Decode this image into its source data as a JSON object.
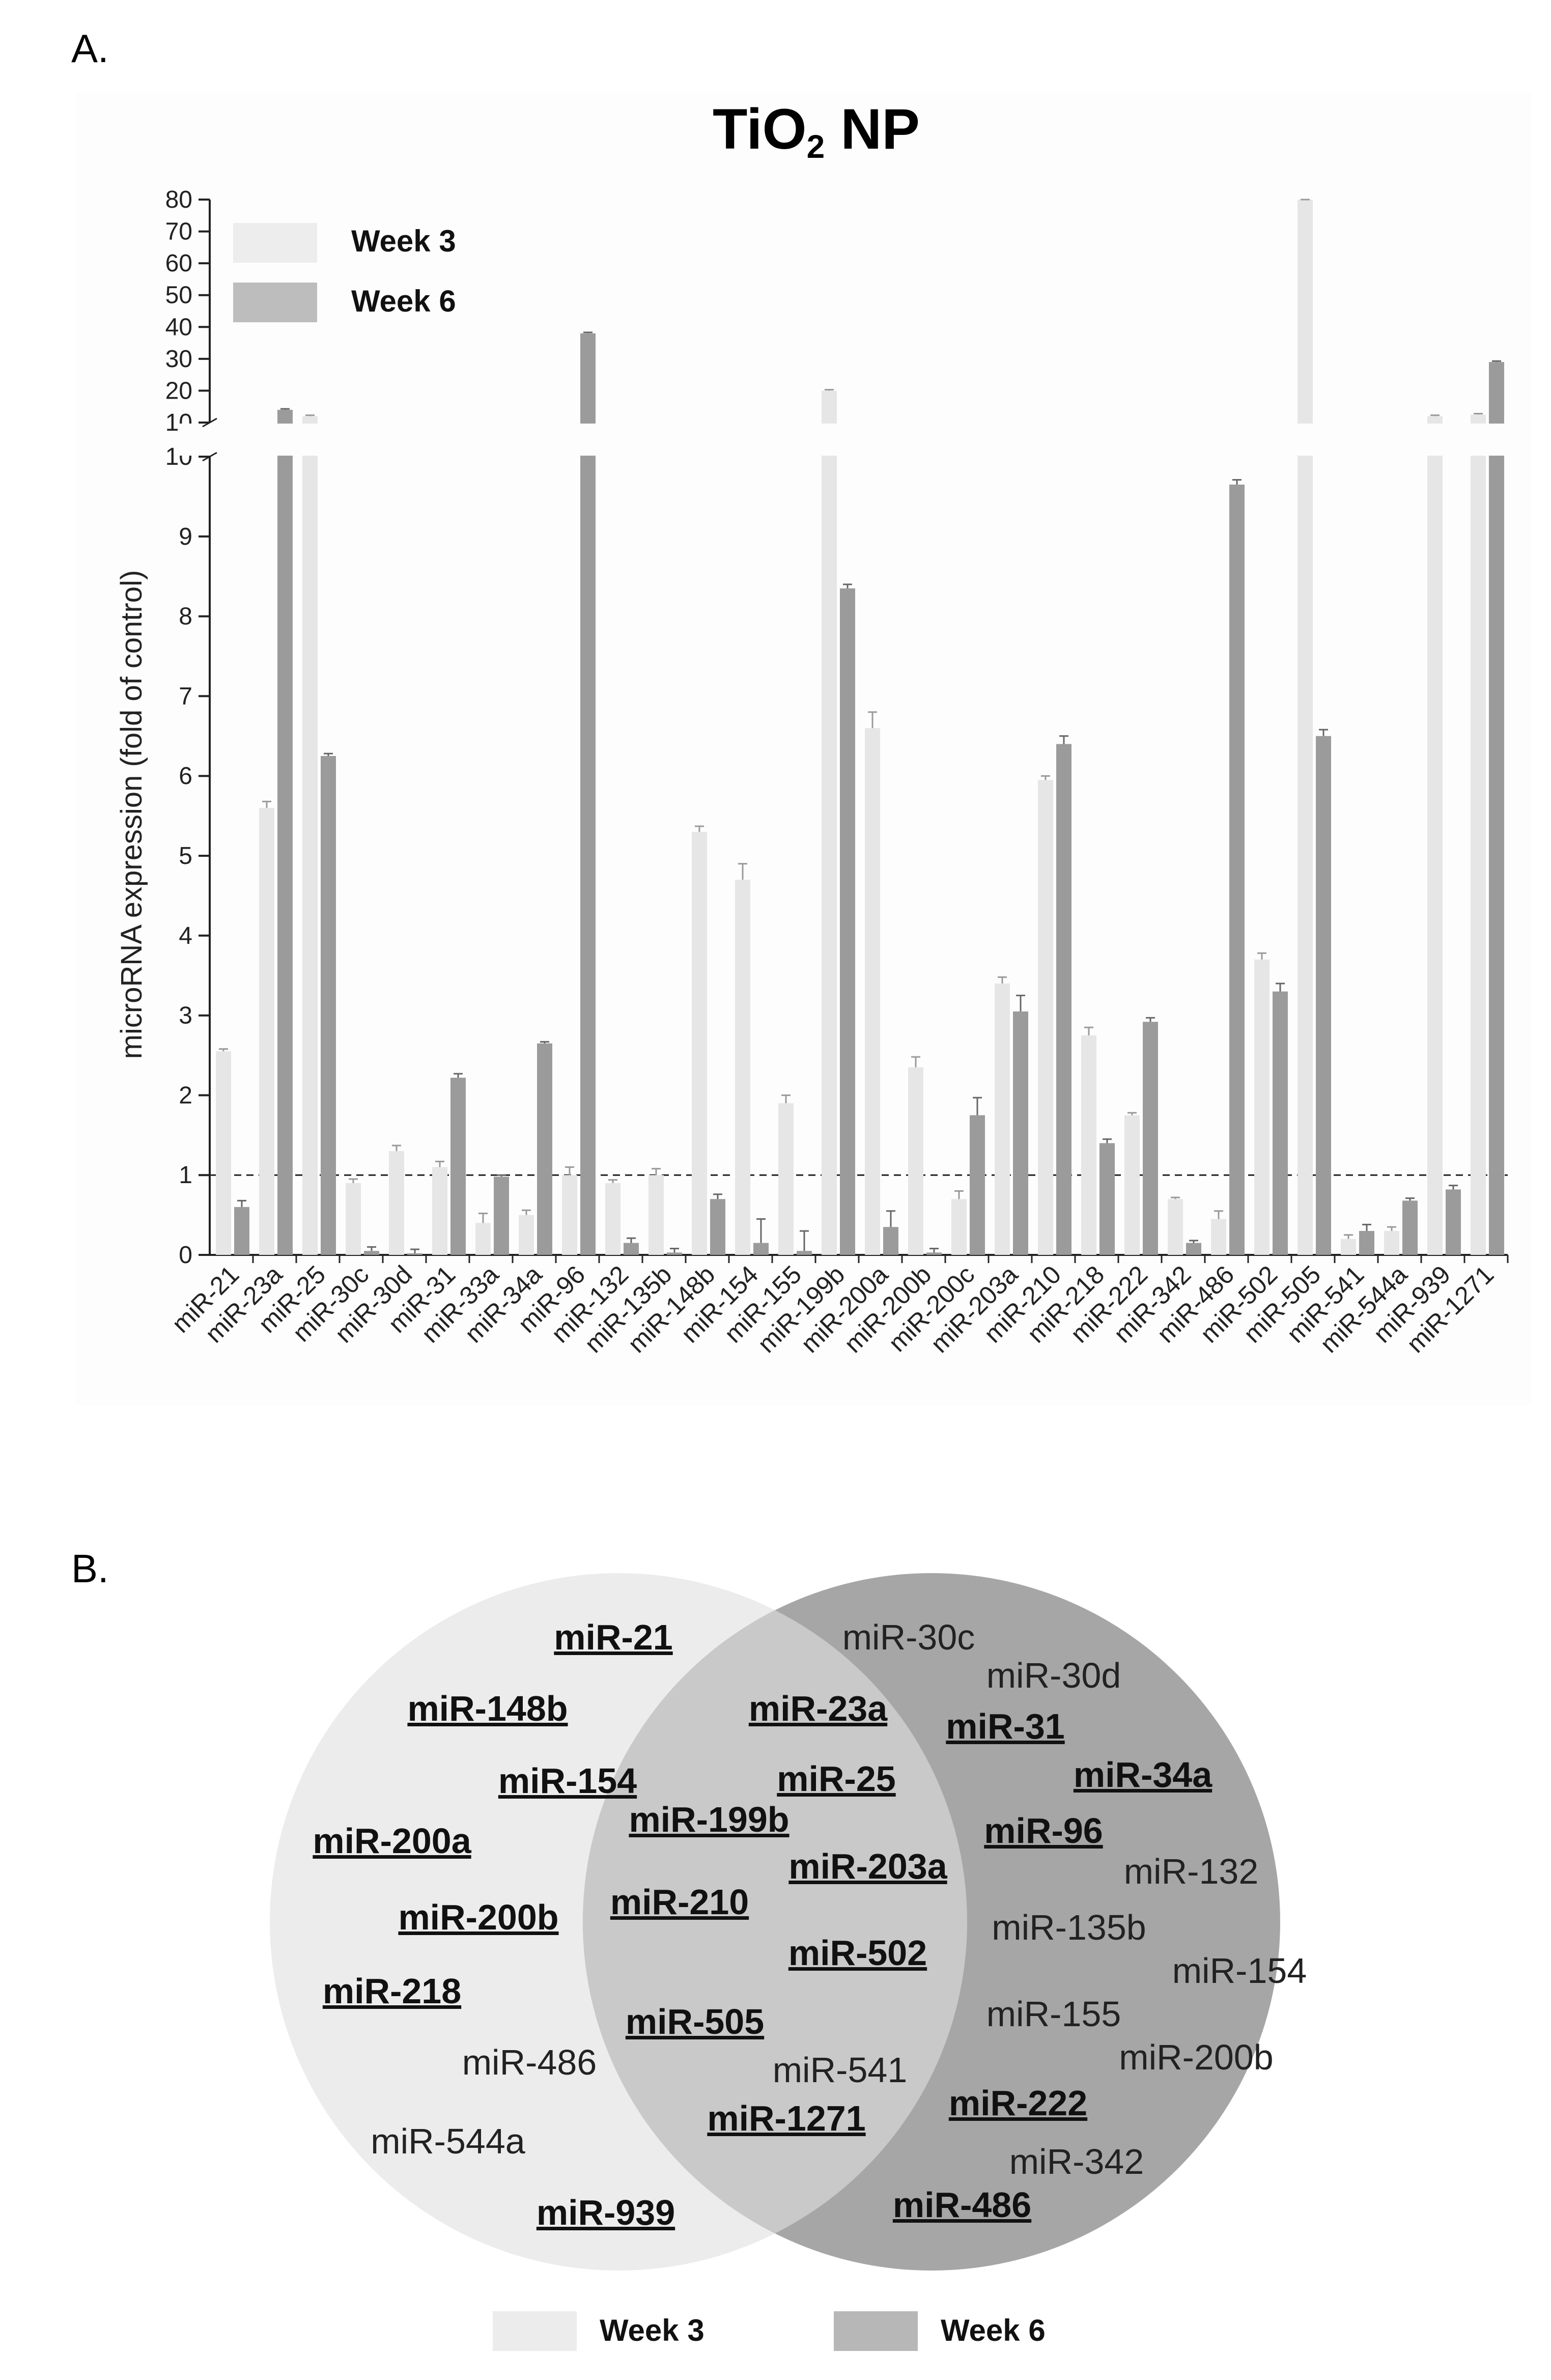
{
  "panel_a_label": "A.",
  "panel_b_label": "B.",
  "chart_data": {
    "type": "bar",
    "title_main": "TiO",
    "title_sub": "2",
    "title_rest": " NP",
    "ylabel": "microRNA expression (fold of control)",
    "xlabel": "",
    "y_lower_ticks": [
      "0",
      "1",
      "2",
      "3",
      "4",
      "5",
      "6",
      "7",
      "8",
      "9",
      "10"
    ],
    "y_upper_ticks": [
      "10",
      "20",
      "30",
      "40",
      "50",
      "60",
      "70",
      "80"
    ],
    "y_axis_break": [
      10,
      10
    ],
    "ylim": [
      0,
      80
    ],
    "reference_line": 1,
    "categories": [
      "miR-21",
      "miR-23a",
      "miR-25",
      "miR-30c",
      "miR-30d",
      "miR-31",
      "miR-33a",
      "miR-34a",
      "miR-96",
      "miR-132",
      "miR-135b",
      "miR-148b",
      "miR-154",
      "miR-155",
      "miR-199b",
      "miR-200a",
      "miR-200b",
      "miR-200c",
      "miR-203a",
      "miR-210",
      "miR-218",
      "miR-222",
      "miR-342",
      "miR-486",
      "miR-502",
      "miR-505",
      "miR-541",
      "miR-544a",
      "miR-939",
      "miR-1271"
    ],
    "series": [
      {
        "name": "Week 3",
        "color": "#e6e6e6",
        "values": [
          2.55,
          5.6,
          12,
          0.9,
          1.3,
          1.1,
          0.4,
          0.5,
          1.0,
          0.9,
          1.0,
          5.3,
          4.7,
          1.9,
          20,
          6.6,
          2.35,
          0.7,
          3.4,
          5.95,
          2.75,
          1.75,
          0.7,
          0.45,
          3.7,
          80,
          0.2,
          0.3,
          12,
          12.5
        ],
        "errors": [
          0.03,
          0.08,
          0.3,
          0.05,
          0.07,
          0.07,
          0.12,
          0.06,
          0.1,
          0.04,
          0.08,
          0.07,
          0.2,
          0.1,
          0.3,
          0.2,
          0.13,
          0.1,
          0.08,
          0.05,
          0.1,
          0.03,
          0.02,
          0.1,
          0.08,
          0.5,
          0.05,
          0.05,
          0.3,
          0.3
        ]
      },
      {
        "name": "Week 6",
        "color": "#9b9b9b",
        "values": [
          0.6,
          14,
          6.25,
          0.05,
          0.02,
          2.22,
          0.98,
          2.65,
          38,
          0.15,
          0.03,
          0.7,
          0.15,
          0.05,
          8.35,
          0.35,
          0.03,
          1.75,
          3.05,
          6.4,
          1.4,
          2.92,
          0.15,
          9.65,
          3.3,
          6.5,
          0.3,
          0.68,
          0.82,
          29
        ],
        "errors": [
          0.08,
          0.3,
          0.03,
          0.05,
          0.05,
          0.05,
          0.02,
          0.02,
          0.3,
          0.06,
          0.05,
          0.06,
          0.3,
          0.25,
          0.05,
          0.2,
          0.05,
          0.22,
          0.2,
          0.1,
          0.05,
          0.05,
          0.03,
          0.06,
          0.1,
          0.08,
          0.08,
          0.03,
          0.05,
          0.3
        ]
      }
    ],
    "legend": [
      "Week 3",
      "Week 6"
    ],
    "legend_position": "top-left"
  },
  "venn": {
    "week3_color": "#ececec",
    "week6_color": "#a6a6a6",
    "overlap_color": "#c9c9c9",
    "legend": [
      "Week 3",
      "Week 6"
    ],
    "week3_only": [
      {
        "label": "miR-21",
        "bold": true
      },
      {
        "label": "miR-148b",
        "bold": true
      },
      {
        "label": "miR-154",
        "bold": true
      },
      {
        "label": "miR-200a",
        "bold": true
      },
      {
        "label": "miR-200b",
        "bold": true
      },
      {
        "label": "miR-218",
        "bold": true
      },
      {
        "label": "miR-486",
        "bold": false
      },
      {
        "label": "miR-544a",
        "bold": false
      },
      {
        "label": "miR-939",
        "bold": true
      }
    ],
    "both": [
      {
        "label": "miR-23a",
        "bold": true
      },
      {
        "label": "miR-25",
        "bold": true
      },
      {
        "label": "miR-199b",
        "bold": true
      },
      {
        "label": "miR-203a",
        "bold": true
      },
      {
        "label": "miR-210",
        "bold": true
      },
      {
        "label": "miR-502",
        "bold": true
      },
      {
        "label": "miR-505",
        "bold": true
      },
      {
        "label": "miR-541",
        "bold": false
      },
      {
        "label": "miR-1271",
        "bold": true
      }
    ],
    "week6_only": [
      {
        "label": "miR-30c",
        "bold": false
      },
      {
        "label": "miR-30d",
        "bold": false
      },
      {
        "label": "miR-31",
        "bold": true
      },
      {
        "label": "miR-34a",
        "bold": true
      },
      {
        "label": "miR-96",
        "bold": true
      },
      {
        "label": "miR-132",
        "bold": false
      },
      {
        "label": "miR-135b",
        "bold": false
      },
      {
        "label": "miR-154",
        "bold": false
      },
      {
        "label": "miR-155",
        "bold": false
      },
      {
        "label": "miR-200b",
        "bold": false
      },
      {
        "label": "miR-222",
        "bold": true
      },
      {
        "label": "miR-342",
        "bold": false
      },
      {
        "label": "miR-486",
        "bold": true
      }
    ]
  }
}
